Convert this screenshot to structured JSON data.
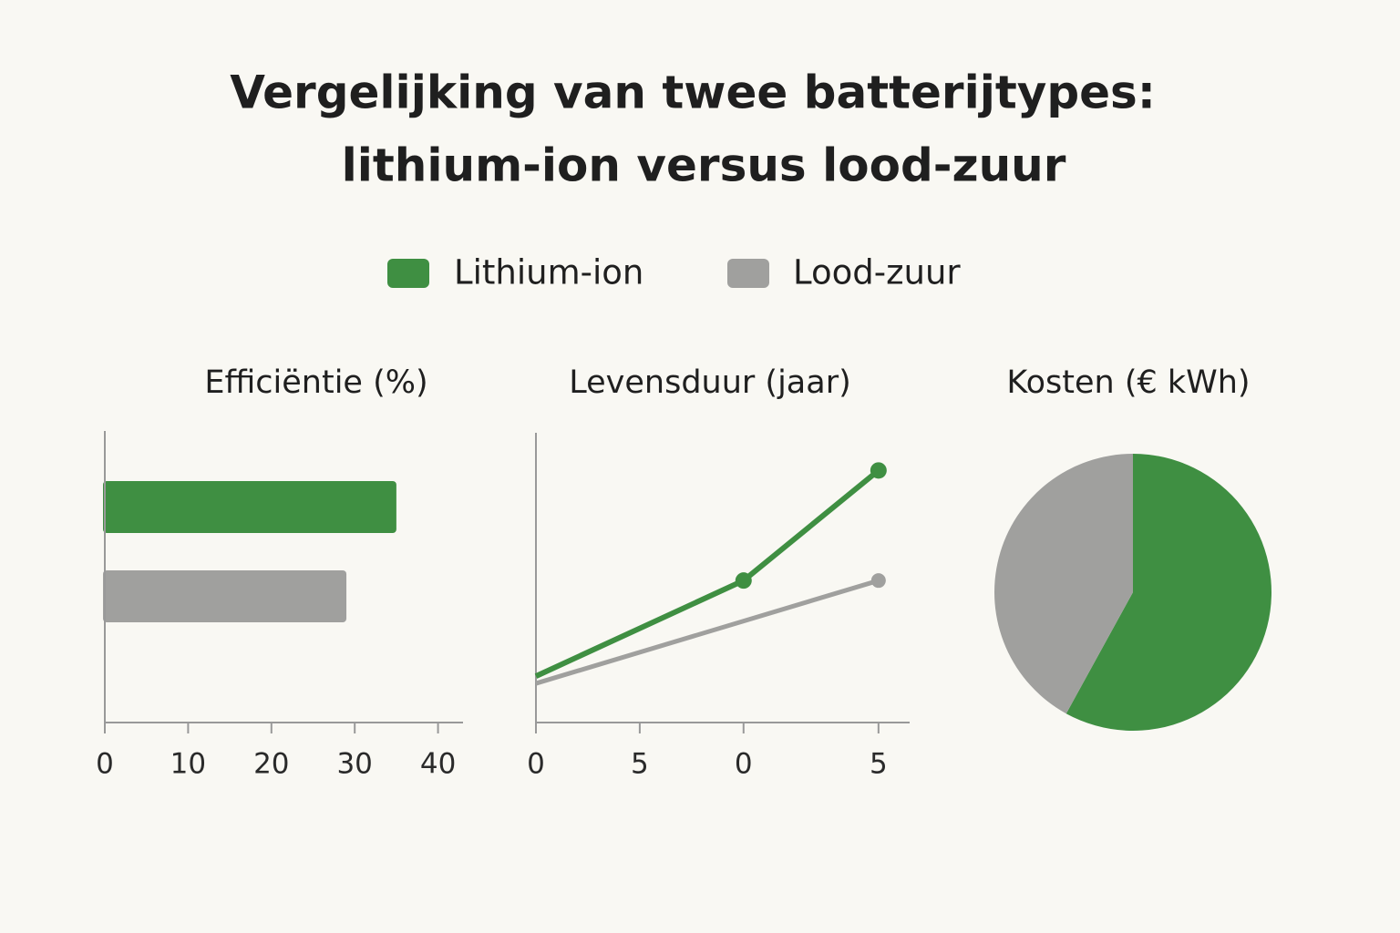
{
  "title": [
    "Vergelijking van twee batterijtypes:",
    "lithium-ion versus lood-zuur"
  ],
  "legend": [
    {
      "name": "Lithium-ion",
      "color": "#3f8f42"
    },
    {
      "name": "Lood-zuur",
      "color": "#a0a09e"
    }
  ],
  "chart_data": [
    {
      "type": "bar",
      "orientation": "horizontal",
      "title": "Efficiëntie (%)",
      "categories": [
        null,
        null
      ],
      "values": [
        35,
        29
      ],
      "colors": [
        "#3f8f42",
        "#a0a09e"
      ],
      "xlim": [
        0,
        43
      ],
      "xticks": [
        0,
        10,
        20,
        30,
        40
      ]
    },
    {
      "type": "line",
      "title": "Levensduur (jaar)",
      "series": [
        {
          "color": "#3f8f42",
          "x": [
            0,
            10,
            16.5
          ],
          "values": [
            1.6,
            4.9,
            8.7
          ]
        },
        {
          "color": "#a0a09e",
          "x": [
            0,
            16.5
          ],
          "values": [
            1.35,
            4.9
          ]
        }
      ],
      "xlim": [
        0,
        18
      ],
      "ylim": [
        0,
        10
      ],
      "xticks": [
        0,
        5,
        {
          "value": 10,
          "label": "0"
        },
        {
          "value": 16.5,
          "label": "5"
        }
      ]
    },
    {
      "type": "pie",
      "title": "Kosten (€ kWh)",
      "values": [
        58,
        42
      ],
      "colors": [
        "#3f8f42",
        "#a0a09e"
      ]
    }
  ]
}
